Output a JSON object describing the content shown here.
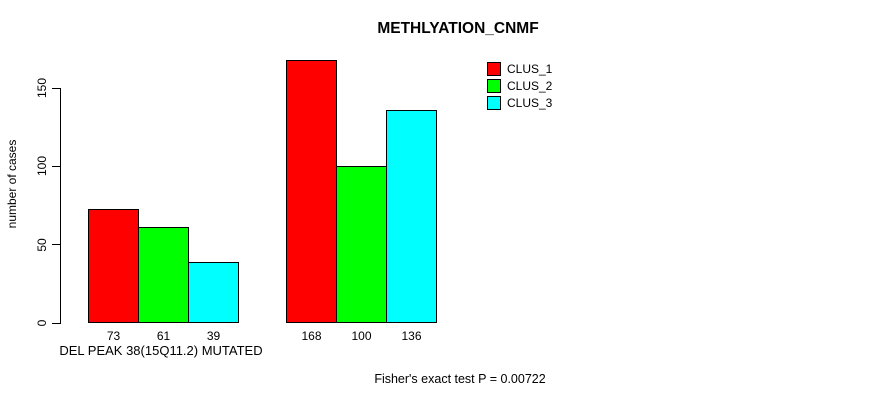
{
  "chart_data": {
    "type": "bar",
    "title": "METHLYATION_CNMF",
    "ylabel": "number of cases",
    "xlabel": "DEL PEAK 38(15Q11.2) MUTATED",
    "ylim": [
      0,
      150
    ],
    "yticks": [
      0,
      50,
      100,
      150
    ],
    "grid": false,
    "legend_position": "top-right",
    "groups": [
      "DEL PEAK 38(15Q11.2) MUTATED",
      ""
    ],
    "series": [
      {
        "name": "CLUS_1",
        "color": "#ff0000",
        "values": [
          73,
          168
        ]
      },
      {
        "name": "CLUS_2",
        "color": "#00ff00",
        "values": [
          61,
          100
        ]
      },
      {
        "name": "CLUS_3",
        "color": "#00ffff",
        "values": [
          39,
          136
        ]
      }
    ],
    "bar_value_labels": [
      73,
      61,
      39,
      168,
      100,
      136
    ]
  },
  "footer": {
    "text": "Fisher's exact test P = 0.00722"
  },
  "colors": {
    "axis": "#000000",
    "background": "#ffffff",
    "clus_1": "#ff0000",
    "clus_2": "#00ff00",
    "clus_3": "#00ffff"
  }
}
